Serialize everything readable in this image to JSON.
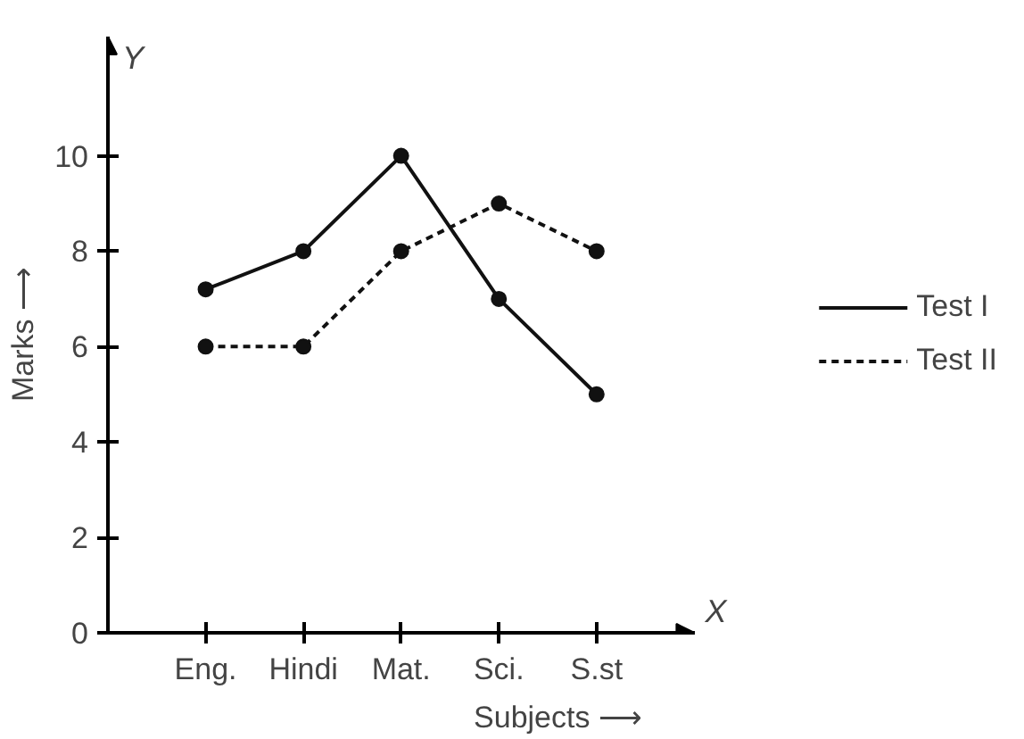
{
  "chart_data": {
    "type": "line",
    "xlabel": "Subjects ⟶",
    "ylabel": "Marks ⟶",
    "categories": [
      "Eng.",
      "Hindi",
      "Mat.",
      "Sci.",
      "S.st"
    ],
    "series": [
      {
        "name": "Test I",
        "color": "#111111",
        "values": [
          7.2,
          8,
          10,
          7,
          5
        ],
        "line_style": "solid"
      },
      {
        "name": "Test II",
        "color": "#111111",
        "values": [
          6,
          6,
          8,
          9,
          8
        ],
        "line_style": "dashed"
      }
    ],
    "ylim": [
      0,
      12.5
    ],
    "yticks": [
      0,
      2,
      4,
      6,
      8,
      10
    ],
    "marker": "circle",
    "legend": "right",
    "grid": false,
    "annotations": [
      "Y",
      "X"
    ]
  }
}
